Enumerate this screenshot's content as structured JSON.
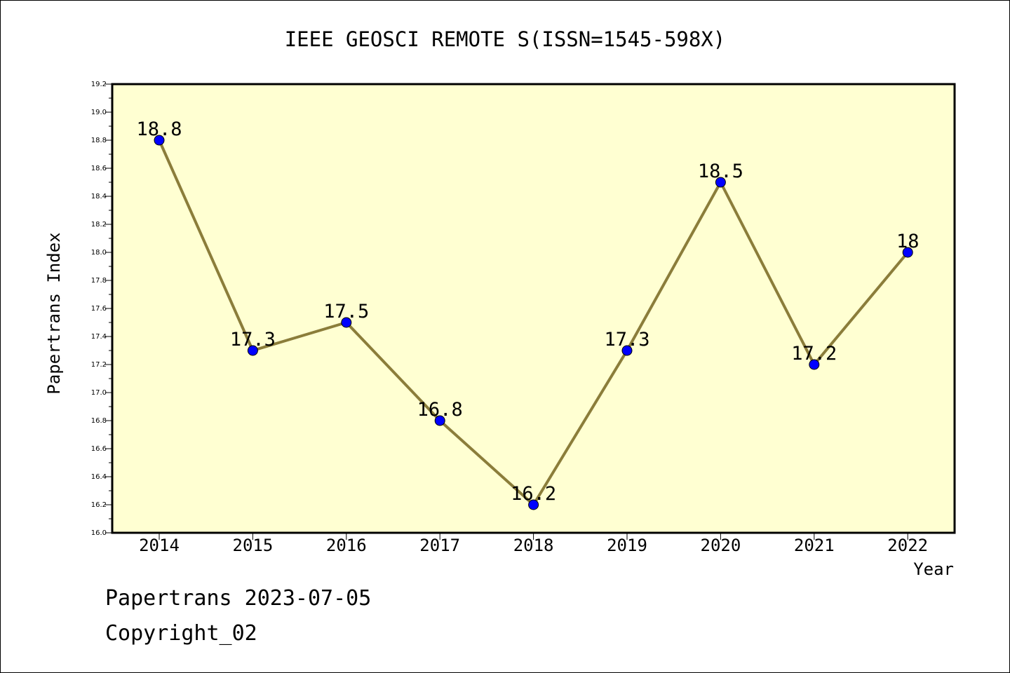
{
  "chart_data": {
    "type": "line",
    "title": "IEEE GEOSCI REMOTE S(ISSN=1545-598X)",
    "xlabel": "Year",
    "ylabel": "Papertrans Index",
    "categories": [
      "2014",
      "2015",
      "2016",
      "2017",
      "2018",
      "2019",
      "2020",
      "2021",
      "2022"
    ],
    "values": [
      18.8,
      17.3,
      17.5,
      16.8,
      16.2,
      17.3,
      18.5,
      17.2,
      18.0
    ],
    "data_labels": [
      "18.8",
      "17.3",
      "17.5",
      "16.8",
      "16.2",
      "17.3",
      "18.5",
      "17.2",
      "18"
    ],
    "ylim": [
      16.0,
      19.2
    ],
    "yticks": [
      "16.0",
      "16.2",
      "16.4",
      "16.6",
      "16.8",
      "17.0",
      "17.2",
      "17.4",
      "17.6",
      "17.8",
      "18.0",
      "18.2",
      "18.4",
      "18.6",
      "18.8",
      "19.0",
      "19.2"
    ],
    "grid": false,
    "legend": "none",
    "colors": {
      "plot_background": "#ffffd2",
      "line": "#8b7d3a",
      "marker": "#0000ff"
    }
  },
  "footer": {
    "line1": "Papertrans 2023-07-05",
    "line2": "Copyright_02"
  }
}
